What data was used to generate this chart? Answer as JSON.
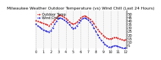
{
  "title": "Milwaukee Weather Outdoor Temperature (vs) Wind Chill (Last 24 Hours)",
  "title_fontsize": 4.2,
  "background_color": "#ffffff",
  "plot_bg_color": "#f8f8f8",
  "grid_color": "#888888",
  "line_temp_color": "#cc0000",
  "line_chill_color": "#0000cc",
  "ylim": [
    0,
    55
  ],
  "yticks": [
    5,
    10,
    15,
    20,
    25,
    30,
    35,
    40,
    45,
    50
  ],
  "ylabel_fontsize": 3.8,
  "xlabel_fontsize": 3.5,
  "n_points": 49,
  "hours": [
    0,
    1,
    2,
    3,
    4,
    5,
    6,
    7,
    8,
    9,
    10,
    11,
    12,
    13,
    14,
    15,
    16,
    17,
    18,
    19,
    20,
    21,
    22,
    23,
    24,
    25,
    26,
    27,
    28,
    29,
    30,
    31,
    32,
    33,
    34,
    35,
    36,
    37,
    38,
    39,
    40,
    41,
    42,
    43,
    44,
    45,
    46,
    47,
    48
  ],
  "x_tick_positions": [
    0,
    4,
    8,
    12,
    16,
    20,
    24,
    28,
    32,
    36,
    40,
    44,
    48
  ],
  "x_labels": [
    "0",
    "1",
    "2",
    "3",
    "4",
    "5",
    "6",
    "7",
    "8",
    "9",
    "10",
    "11",
    "12"
  ],
  "temp": [
    40,
    39,
    38,
    37,
    36,
    35,
    34,
    33,
    35,
    38,
    41,
    44,
    47,
    48,
    47,
    45,
    43,
    41,
    38,
    36,
    35,
    36,
    38,
    41,
    44,
    46,
    47,
    46,
    44,
    42,
    39,
    36,
    32,
    28,
    25,
    22,
    19,
    17,
    15,
    14,
    14,
    15,
    16,
    16,
    15,
    14,
    13,
    12,
    13
  ],
  "chill": [
    35,
    33,
    31,
    29,
    27,
    26,
    25,
    24,
    26,
    30,
    35,
    39,
    43,
    44,
    43,
    41,
    39,
    37,
    34,
    31,
    29,
    30,
    33,
    37,
    40,
    43,
    44,
    43,
    41,
    38,
    34,
    30,
    25,
    20,
    16,
    12,
    9,
    6,
    4,
    2,
    2,
    3,
    4,
    4,
    3,
    2,
    1,
    0,
    1
  ],
  "vgrid_positions": [
    0,
    4,
    8,
    12,
    16,
    20,
    24,
    28,
    32,
    36,
    40,
    44,
    48
  ],
  "legend_labels": [
    "Outdoor Temp",
    "Wind Chill"
  ],
  "legend_fontsize": 3.5,
  "line_width": 0.8,
  "marker_size": 1.0
}
